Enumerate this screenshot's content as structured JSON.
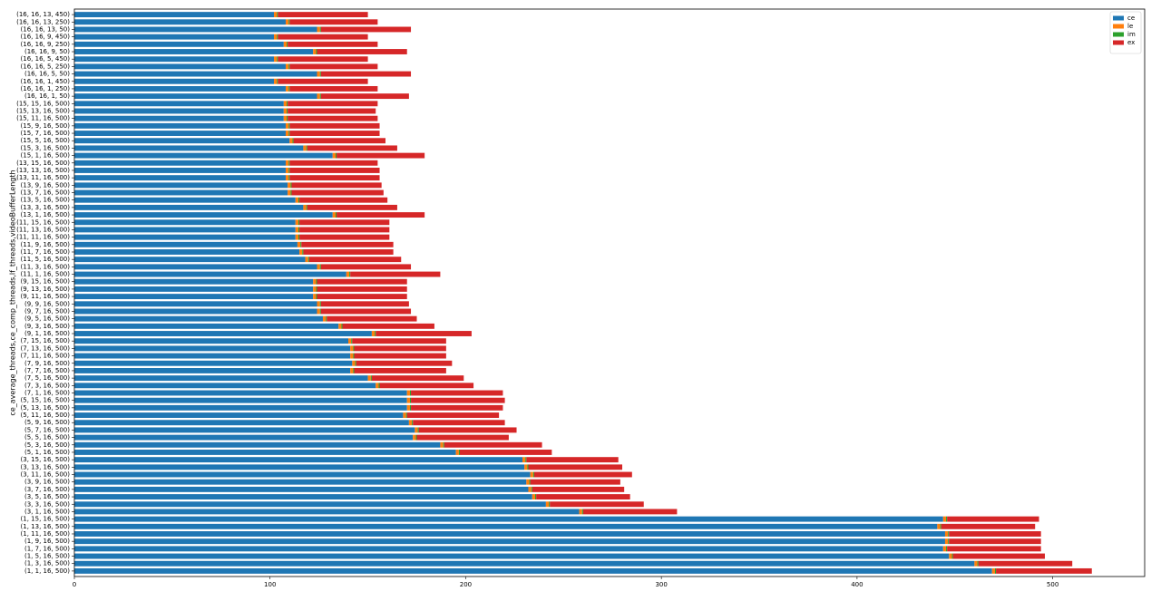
{
  "chart_data": {
    "type": "stacked-barh",
    "y_label": "ce_average_threads,ce_comp_threads,lf_threads,videoBufferLength",
    "categories": [
      "(16, 16, 13, 450)",
      "(16, 16, 13, 250)",
      "(16, 16, 13, 50)",
      "(16, 16, 9, 450)",
      "(16, 16, 9, 250)",
      "(16, 16, 9, 50)",
      "(16, 16, 5, 450)",
      "(16, 16, 5, 250)",
      "(16, 16, 5, 50)",
      "(16, 16, 1, 450)",
      "(16, 16, 1, 250)",
      "(16, 16, 1, 50)",
      "(15, 15, 16, 500)",
      "(15, 13, 16, 500)",
      "(15, 11, 16, 500)",
      "(15, 9, 16, 500)",
      "(15, 7, 16, 500)",
      "(15, 5, 16, 500)",
      "(15, 3, 16, 500)",
      "(15, 1, 16, 500)",
      "(13, 15, 16, 500)",
      "(13, 13, 16, 500)",
      "(13, 11, 16, 500)",
      "(13, 9, 16, 500)",
      "(13, 7, 16, 500)",
      "(13, 5, 16, 500)",
      "(13, 3, 16, 500)",
      "(13, 1, 16, 500)",
      "(11, 15, 16, 500)",
      "(11, 13, 16, 500)",
      "(11, 11, 16, 500)",
      "(11, 9, 16, 500)",
      "(11, 7, 16, 500)",
      "(11, 5, 16, 500)",
      "(11, 3, 16, 500)",
      "(11, 1, 16, 500)",
      "(9, 15, 16, 500)",
      "(9, 13, 16, 500)",
      "(9, 11, 16, 500)",
      "(9, 9, 16, 500)",
      "(9, 7, 16, 500)",
      "(9, 5, 16, 500)",
      "(9, 3, 16, 500)",
      "(9, 1, 16, 500)",
      "(7, 15, 16, 500)",
      "(7, 13, 16, 500)",
      "(7, 11, 16, 500)",
      "(7, 9, 16, 500)",
      "(7, 7, 16, 500)",
      "(7, 5, 16, 500)",
      "(7, 3, 16, 500)",
      "(7, 1, 16, 500)",
      "(5, 15, 16, 500)",
      "(5, 13, 16, 500)",
      "(5, 11, 16, 500)",
      "(5, 9, 16, 500)",
      "(5, 7, 16, 500)",
      "(5, 5, 16, 500)",
      "(5, 3, 16, 500)",
      "(5, 1, 16, 500)",
      "(3, 15, 16, 500)",
      "(3, 13, 16, 500)",
      "(3, 11, 16, 500)",
      "(3, 9, 16, 500)",
      "(3, 7, 16, 500)",
      "(3, 5, 16, 500)",
      "(3, 3, 16, 500)",
      "(3, 1, 16, 500)",
      "(1, 15, 16, 500)",
      "(1, 13, 16, 500)",
      "(1, 11, 16, 500)",
      "(1, 9, 16, 500)",
      "(1, 7, 16, 500)",
      "(1, 5, 16, 500)",
      "(1, 3, 16, 500)",
      "(1, 1, 16, 500)"
    ],
    "series": [
      {
        "name": "ce",
        "color": "#1f77b4",
        "values": [
          102,
          108,
          124,
          102,
          107,
          122,
          102,
          108,
          124,
          102,
          108,
          124,
          107,
          107,
          107,
          108,
          108,
          110,
          117,
          132,
          108,
          108,
          108,
          109,
          109,
          113,
          117,
          132,
          113,
          113,
          113,
          114,
          115,
          118,
          124,
          139,
          122,
          122,
          122,
          124,
          124,
          127,
          135,
          152,
          140,
          141,
          141,
          142,
          141,
          150,
          154,
          170,
          170,
          170,
          168,
          171,
          174,
          173,
          187,
          195,
          229,
          230,
          233,
          231,
          232,
          234,
          241,
          258,
          444,
          441,
          445,
          445,
          444,
          447,
          460,
          469
        ]
      },
      {
        "name": "le",
        "color": "#ff7f0e",
        "values": [
          1.5,
          1.5,
          1.5,
          1.5,
          1.5,
          1.5,
          1.5,
          1.5,
          1.5,
          1.5,
          1.5,
          1.5,
          1.5,
          1.5,
          1.5,
          1.5,
          1.5,
          1.5,
          1.5,
          1.5,
          1.5,
          1.5,
          1.5,
          1.5,
          1.5,
          1.5,
          1.5,
          1.5,
          1.5,
          1.5,
          1.5,
          1.5,
          1.5,
          1.5,
          1.5,
          1.5,
          1.5,
          1.5,
          1.5,
          1.5,
          1.5,
          1.5,
          1.5,
          1.5,
          1.5,
          1.5,
          1.5,
          1.5,
          1.5,
          1.5,
          1.5,
          1.5,
          1.5,
          1.5,
          1.5,
          1.5,
          1.5,
          1.5,
          1.5,
          1.5,
          1.5,
          1.5,
          1.5,
          1.5,
          1.5,
          1.5,
          1.5,
          1.5,
          1.5,
          1.5,
          1.5,
          1.5,
          1.5,
          1.5,
          1.5,
          1.5
        ]
      },
      {
        "name": "im",
        "color": "#2ca02c",
        "values": [
          0.5,
          0.5,
          0.5,
          0.5,
          0.5,
          0.5,
          0.5,
          0.5,
          0.5,
          0.5,
          0.5,
          0.5,
          0.5,
          0.5,
          0.5,
          0.5,
          0.5,
          0.5,
          0.5,
          0.5,
          0.5,
          0.5,
          0.5,
          0.5,
          0.5,
          0.5,
          0.5,
          0.5,
          0.5,
          0.5,
          0.5,
          0.5,
          0.5,
          0.5,
          0.5,
          0.5,
          0.5,
          0.5,
          0.5,
          0.5,
          0.5,
          0.5,
          0.5,
          0.5,
          0.5,
          0.5,
          0.5,
          0.5,
          0.5,
          0.5,
          0.5,
          0.5,
          0.5,
          0.5,
          0.5,
          0.5,
          0.5,
          0.5,
          0.5,
          0.5,
          0.5,
          0.5,
          0.5,
          0.5,
          0.5,
          0.5,
          0.5,
          0.5,
          0.5,
          0.5,
          0.5,
          0.5,
          0.5,
          0.5,
          0.5,
          0.5
        ]
      },
      {
        "name": "ex",
        "color": "#d62728",
        "values": [
          46,
          45,
          46,
          46,
          46,
          46,
          46,
          45,
          46,
          46,
          45,
          45,
          46,
          45,
          46,
          46,
          46,
          47,
          46,
          45,
          45,
          46,
          46,
          46,
          47,
          45,
          46,
          45,
          46,
          46,
          46,
          47,
          46,
          47,
          46,
          46,
          46,
          46,
          46,
          45,
          46,
          46,
          47,
          49,
          48,
          47,
          47,
          49,
          47,
          47,
          48,
          47,
          48,
          47,
          47,
          47,
          50,
          47,
          50,
          47,
          47,
          48,
          50,
          46,
          47,
          48,
          48,
          48,
          47,
          48,
          47,
          47,
          48,
          47,
          48,
          49
        ]
      }
    ],
    "xlim": [
      0,
      547
    ],
    "xticks": [
      0,
      100,
      200,
      300,
      400,
      500
    ],
    "legend": "upper right"
  }
}
